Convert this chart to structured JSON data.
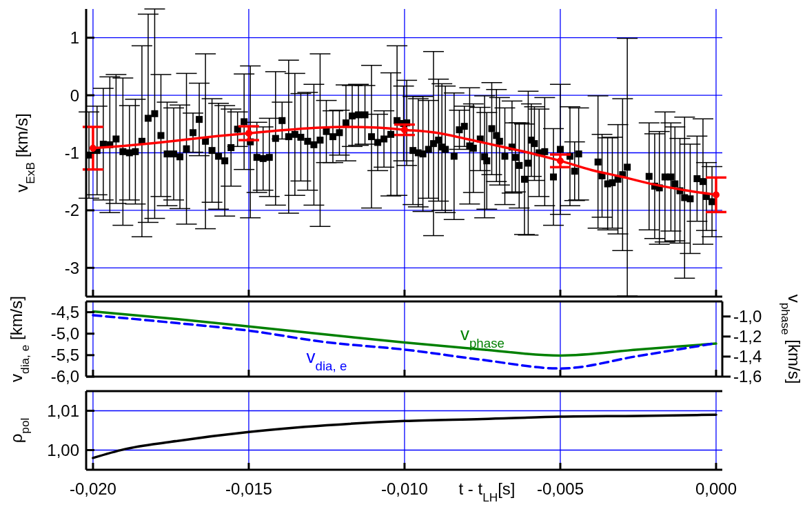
{
  "chart_data": [
    {
      "type": "scatter",
      "ylabel": "v$_{ExB}$ [km/s]",
      "xlim": [
        -0.02022,
        0.0002
      ],
      "xticks": [
        -0.02,
        -0.015,
        -0.01,
        -0.005,
        0
      ],
      "ylim": [
        -3.5,
        1.5
      ],
      "yticks": [
        1,
        0,
        -1,
        -2,
        -3
      ],
      "grid": true,
      "tick_labels": "y",
      "series": [
        {
          "type": "scatter",
          "color": "#000000",
          "marker": "square",
          "x": [
            -0.02013,
            -0.01987,
            -0.01967,
            -0.01946,
            -0.01926,
            -0.01904,
            -0.01883,
            -0.01864,
            -0.01843,
            -0.01823,
            -0.01802,
            -0.01782,
            -0.01762,
            -0.01741,
            -0.01721,
            -0.017,
            -0.01679,
            -0.01659,
            -0.01639,
            -0.01618,
            -0.01597,
            -0.01577,
            -0.01557,
            -0.01536,
            -0.01515,
            -0.01495,
            -0.01474,
            -0.01454,
            -0.01434,
            -0.01414,
            -0.01393,
            -0.01372,
            -0.01352,
            -0.01333,
            -0.01311,
            -0.01291,
            -0.01271,
            -0.01251,
            -0.0123,
            -0.01209,
            -0.01188,
            -0.01168,
            -0.01148,
            -0.01127,
            -0.01106,
            -0.01086,
            -0.01066,
            -0.01044,
            -0.01024,
            -0.01003,
            -0.00993,
            -0.00973,
            -0.00956,
            -0.00941,
            -0.00923,
            -0.00907,
            -0.00891,
            -0.0088,
            -0.00869,
            -0.00841,
            -0.00824,
            -0.00808,
            -0.00791,
            -0.00779,
            -0.00757,
            -0.00743,
            -0.00736,
            -0.0072,
            -0.00705,
            -0.00695,
            -0.00678,
            -0.00655,
            -0.00644,
            -0.00632,
            -0.00615,
            -0.00603,
            -0.00593,
            -0.00583,
            -0.00568,
            -0.0055,
            -0.00522,
            -0.005,
            -0.00469,
            -0.00454,
            -0.00441,
            -0.00379,
            -0.00366,
            -0.00348,
            -0.00333,
            -0.00315,
            -0.003,
            -0.00285,
            -0.00215,
            -0.00197,
            -0.00182,
            -0.00164,
            -0.00145,
            -0.00132,
            -0.00116,
            -0.00101,
            -0.00083,
            -0.00061,
            -0.00042,
            -0.00031,
            -0.00013
          ],
          "values": [
            -1.04,
            -0.96,
            -0.85,
            -0.86,
            -0.76,
            -0.98,
            -1.0,
            -0.98,
            -0.8,
            -0.4,
            -0.32,
            -0.7,
            -1.02,
            -1.02,
            -1.07,
            -0.93,
            -0.65,
            -0.42,
            -0.8,
            -0.96,
            -1.06,
            -1.14,
            -0.91,
            -0.59,
            -0.46,
            -0.81,
            -1.08,
            -1.1,
            -1.08,
            -0.75,
            -0.44,
            -0.72,
            -0.68,
            -0.73,
            -0.8,
            -0.86,
            -0.78,
            -0.63,
            -0.72,
            -0.65,
            -0.48,
            -0.36,
            -0.34,
            -0.34,
            -0.72,
            -0.82,
            -0.76,
            -0.68,
            -0.44,
            -0.49,
            -0.48,
            -0.96,
            -1.0,
            -1.02,
            -0.94,
            -0.84,
            -0.78,
            -0.9,
            -0.94,
            -1.06,
            -0.6,
            -0.54,
            -0.88,
            -0.92,
            -0.76,
            -1.07,
            -1.14,
            -0.58,
            -0.7,
            -0.8,
            -1.06,
            -0.9,
            -1.08,
            -1.22,
            -1.46,
            -1.18,
            -0.78,
            -0.84,
            -1.0,
            -0.98,
            -1.42,
            -0.94,
            -1.06,
            -1.32,
            -1.02,
            -1.16,
            -1.4,
            -1.54,
            -1.52,
            -1.46,
            -1.38,
            -1.25,
            -1.41,
            -1.58,
            -1.61,
            -1.42,
            -1.42,
            -1.54,
            -1.66,
            -1.78,
            -1.8,
            -1.45,
            -1.5,
            -1.76,
            -1.85
          ],
          "errors": [
            0.75,
            0.77,
            0.97,
            1.18,
            1.12,
            1.28,
            0.82,
            0.91,
            1.66,
            1.81,
            1.82,
            1.06,
            0.9,
            0.8,
            0.9,
            1.31,
            0.34,
            0.63,
            1.52,
            0.9,
            0.92,
            0.96,
            0.67,
            0.3,
            0.83,
            1.32,
            0.61,
            0.55,
            0.68,
            1.16,
            0.32,
            1.33,
            1.06,
            0.76,
            0.85,
            1.05,
            1.5,
            0.54,
            0.45,
            0.39,
            0.66,
            0.53,
            0.53,
            0.51,
            1.24,
            0.49,
            0.49,
            1.07,
            1.3,
            0.65,
            0.74,
            0.94,
            0.94,
            1.0,
            0.85,
            1.6,
            1.06,
            1.1,
            1.1,
            1.1,
            0.34,
            0.35,
            1.01,
            0.77,
            0.55,
            1.06,
            0.84,
            0.8,
            0.8,
            0.76,
            0.84,
            0.8,
            0.6,
            0.74,
            0.96,
            1.25,
            0.63,
            0.64,
            0.76,
            0.94,
            0.84,
            1.13,
            0.86,
            0.51,
            0.8,
            1.15,
            0.72,
            0.8,
            0.79,
            0.95,
            1.32,
            2.24,
            0.93,
            0.91,
            0.98,
            1.13,
            0.94,
            0.99,
            0.91,
            1.4,
            0.95,
            0.74,
            1.09,
            0.59,
            0.61
          ]
        },
        {
          "type": "line",
          "color": "#ff0000",
          "marker": "none",
          "x": [
            -0.02,
            -0.019,
            -0.018,
            -0.017,
            -0.016,
            -0.015,
            -0.014,
            -0.013,
            -0.012,
            -0.011,
            -0.01,
            -0.009,
            -0.008,
            -0.007,
            -0.006,
            -0.005,
            -0.004,
            -0.003,
            -0.002,
            -0.001,
            0
          ],
          "values": [
            -0.92,
            -0.88,
            -0.83,
            -0.77,
            -0.71,
            -0.66,
            -0.61,
            -0.57,
            -0.55,
            -0.56,
            -0.6,
            -0.65,
            -0.76,
            -0.88,
            -1.0,
            -1.14,
            -1.3,
            -1.42,
            -1.55,
            -1.65,
            -1.73
          ]
        },
        {
          "type": "scatter",
          "color": "#ff0000",
          "marker": "circle",
          "x": [
            -0.02,
            -0.015,
            -0.01,
            -0.005,
            0
          ],
          "values": [
            -0.92,
            -0.66,
            -0.6,
            -1.14,
            -1.73
          ],
          "errors": [
            0.37,
            0.12,
            0.09,
            0.11,
            0.3
          ]
        }
      ]
    },
    {
      "type": "line",
      "ylabel": "v$_{dia, e}$ [km/s]",
      "y2label": "v$_{phase}$ [km/s]",
      "xlim": [
        -0.02022,
        0.0002
      ],
      "xticks": [
        -0.02,
        -0.015,
        -0.01,
        -0.005,
        0
      ],
      "ylim": [
        -6.0,
        -4.25
      ],
      "yticks": [
        {
          "value": -4.5,
          "label": "-4,5"
        },
        {
          "value": -5.0,
          "label": "-5,0"
        },
        {
          "value": -5.5,
          "label": "-5,5"
        },
        {
          "value": -6.0,
          "label": "-6,0"
        }
      ],
      "y2lim": [
        -1.6,
        -0.85
      ],
      "y2ticks": [
        {
          "value": -1.0,
          "label": "-1,0"
        },
        {
          "value": -1.2,
          "label": "-1,2"
        },
        {
          "value": -1.4,
          "label": "-1,4"
        },
        {
          "value": -1.6,
          "label": "-1,6"
        }
      ],
      "grid": "x",
      "tick_labels": "y",
      "series": [
        {
          "name": "v$_{phase}$",
          "color": "#008000",
          "axis": "y2",
          "line_style": "solid",
          "x": [
            -0.02,
            -0.0175,
            -0.015,
            -0.0125,
            -0.01,
            -0.0075,
            -0.005,
            -0.0025,
            0
          ],
          "values": [
            -0.95,
            -1.02,
            -1.1,
            -1.18,
            -1.26,
            -1.33,
            -1.39,
            -1.33,
            -1.27
          ]
        },
        {
          "name": "v$_{dia, e}$",
          "color": "#0000ff",
          "line_style": "dashed",
          "x": [
            -0.02,
            -0.0175,
            -0.015,
            -0.0125,
            -0.01,
            -0.0075,
            -0.005,
            -0.0025,
            0
          ],
          "values": [
            -4.57,
            -4.74,
            -4.93,
            -5.2,
            -5.37,
            -5.61,
            -5.81,
            -5.52,
            -5.22
          ]
        }
      ]
    },
    {
      "type": "line",
      "ylabel": "ρ$_{pol}$",
      "xlabel": "t - t$_{LH}$[s]",
      "xlim": [
        -0.02022,
        0.0002
      ],
      "xticks": [
        {
          "value": -0.02,
          "label": "-0,020"
        },
        {
          "value": -0.015,
          "label": "-0,015"
        },
        {
          "value": -0.01,
          "label": "-0,010"
        },
        {
          "value": -0.005,
          "label": "-0,005"
        },
        {
          "value": 0,
          "label": "0,000"
        }
      ],
      "ylim": [
        0.995,
        1.015
      ],
      "yticks": [
        {
          "value": 1.0,
          "label": "1,00"
        },
        {
          "value": 1.01,
          "label": "1,01"
        }
      ],
      "grid": true,
      "series": [
        {
          "color": "#000000",
          "x": [
            -0.02,
            -0.019,
            -0.0175,
            -0.015,
            -0.0125,
            -0.01,
            -0.0075,
            -0.005,
            -0.0025,
            0
          ],
          "values": [
            0.998,
            1.0002,
            1.0021,
            1.0046,
            1.0063,
            1.0074,
            1.0079,
            1.0085,
            1.0087,
            1.009
          ]
        }
      ]
    }
  ]
}
